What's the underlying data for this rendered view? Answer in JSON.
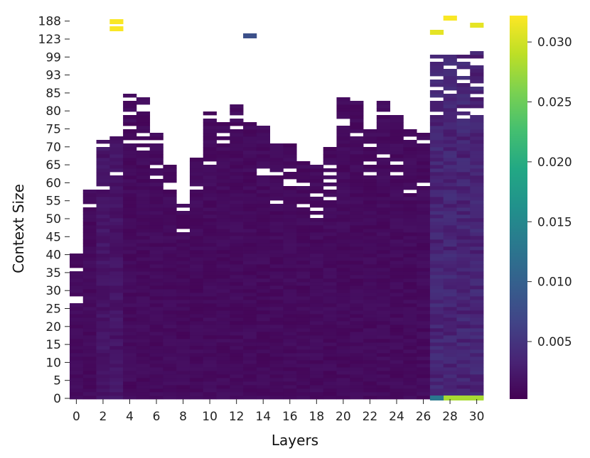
{
  "chart_data": {
    "type": "heatmap",
    "title": "",
    "xlabel": "Layers",
    "ylabel": "Context Size",
    "x_tick_labels": [
      "0",
      "2",
      "4",
      "6",
      "8",
      "10",
      "12",
      "14",
      "16",
      "18",
      "20",
      "22",
      "24",
      "26",
      "28",
      "30"
    ],
    "y_tick_labels": [
      "0",
      "5",
      "10",
      "15",
      "20",
      "25",
      "30",
      "35",
      "40",
      "45",
      "50",
      "55",
      "60",
      "65",
      "70",
      "75",
      "80",
      "85",
      "93",
      "99",
      "123",
      "188"
    ],
    "n_layers": 31,
    "n_rows": 108,
    "colormap": "viridis",
    "colorbar": {
      "ticks": [
        "0.005",
        "0.010",
        "0.015",
        "0.020",
        "0.025",
        "0.030"
      ],
      "tick_values": [
        0.005,
        0.01,
        0.015,
        0.02,
        0.025,
        0.03
      ],
      "vmin": 0.0002,
      "vmax": 0.0322
    },
    "missing_color": "#ffffff",
    "layer_max_row": [
      40,
      58,
      73,
      74,
      85,
      84,
      74,
      65,
      55,
      69,
      80,
      77,
      82,
      77,
      77,
      71,
      71,
      69,
      65,
      70,
      84,
      84,
      75,
      84,
      79,
      75,
      74,
      96,
      96,
      96,
      97
    ],
    "notes_hot_cells": [
      {
        "layer": 3,
        "row_from_top": 1,
        "value": 0.032
      },
      {
        "layer": 3,
        "row_from_top": 3,
        "value": 0.032
      },
      {
        "layer": 13,
        "row_from_top": 5,
        "value": 0.008
      },
      {
        "layer": 28,
        "row_from_bottom": 0,
        "value": 0.028
      },
      {
        "layer": 29,
        "row_from_bottom": 0,
        "value": 0.028
      },
      {
        "layer": 30,
        "row_from_bottom": 0,
        "value": 0.028
      },
      {
        "layer": 27,
        "row_from_bottom": 0,
        "value": 0.013
      },
      {
        "layer": 28,
        "row_from_top": 0,
        "value": 0.032
      },
      {
        "layer": 30,
        "row_from_top": 2,
        "value": 0.031
      },
      {
        "layer": 27,
        "row_from_top": 4,
        "value": 0.031
      }
    ]
  }
}
